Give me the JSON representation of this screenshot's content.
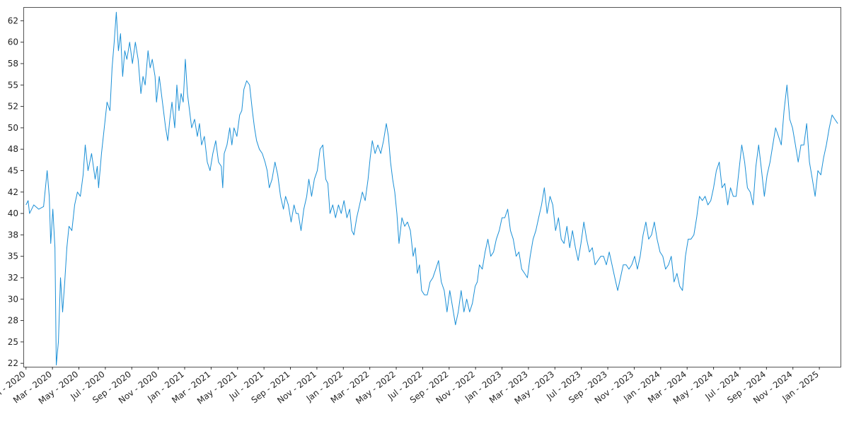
{
  "chart_data": {
    "type": "line",
    "color": "#1a8fd6",
    "xlim": [
      -0.2,
      61.6
    ],
    "ylim": [
      22.1,
      64.1
    ],
    "xticks": [
      {
        "value": 0,
        "label": "Jan - 2020"
      },
      {
        "value": 2,
        "label": "Mar - 2020"
      },
      {
        "value": 4,
        "label": "May - 2020"
      },
      {
        "value": 6,
        "label": "Jul - 2020"
      },
      {
        "value": 8,
        "label": "Sep - 2020"
      },
      {
        "value": 10,
        "label": "Nov - 2020"
      },
      {
        "value": 12,
        "label": "Jan - 2021"
      },
      {
        "value": 14,
        "label": "Mar - 2021"
      },
      {
        "value": 16,
        "label": "May - 2021"
      },
      {
        "value": 18,
        "label": "Jul - 2021"
      },
      {
        "value": 20,
        "label": "Sep - 2021"
      },
      {
        "value": 22,
        "label": "Nov - 2021"
      },
      {
        "value": 24,
        "label": "Jan - 2022"
      },
      {
        "value": 26,
        "label": "Mar - 2022"
      },
      {
        "value": 28,
        "label": "May - 2022"
      },
      {
        "value": 30,
        "label": "Jul - 2022"
      },
      {
        "value": 32,
        "label": "Sep - 2022"
      },
      {
        "value": 34,
        "label": "Nov - 2022"
      },
      {
        "value": 36,
        "label": "Jan - 2023"
      },
      {
        "value": 38,
        "label": "Mar - 2023"
      },
      {
        "value": 40,
        "label": "May - 2023"
      },
      {
        "value": 42,
        "label": "Jul - 2023"
      },
      {
        "value": 44,
        "label": "Sep - 2023"
      },
      {
        "value": 46,
        "label": "Nov - 2023"
      },
      {
        "value": 48,
        "label": "Jan - 2024"
      },
      {
        "value": 50,
        "label": "Mar - 2024"
      },
      {
        "value": 52,
        "label": "May - 2024"
      },
      {
        "value": 54,
        "label": "Jul - 2024"
      },
      {
        "value": 56,
        "label": "Sep - 2024"
      },
      {
        "value": 58,
        "label": "Nov - 2024"
      },
      {
        "value": 60,
        "label": "Jan - 2025"
      }
    ],
    "yticks": [
      {
        "value": 22.5,
        "label": "22"
      },
      25,
      {
        "value": 27.5,
        "label": "28"
      },
      30,
      {
        "value": 32.5,
        "label": "32"
      },
      35,
      {
        "value": 37.5,
        "label": "38"
      },
      40,
      {
        "value": 42.5,
        "label": "42"
      },
      45,
      {
        "value": 47.5,
        "label": "48"
      },
      50,
      {
        "value": 52.5,
        "label": "52"
      },
      55,
      {
        "value": 57.5,
        "label": "58"
      },
      60,
      {
        "value": 62.5,
        "label": "62"
      }
    ],
    "x": [
      0,
      0.16,
      0.27,
      0.59,
      0.96,
      1.33,
      1.6,
      1.76,
      1.87,
      2.03,
      2.19,
      2.29,
      2.45,
      2.61,
      2.77,
      2.93,
      3.09,
      3.25,
      3.47,
      3.68,
      3.89,
      4.11,
      4.32,
      4.48,
      4.69,
      4.96,
      5.23,
      5.39,
      5.49,
      5.71,
      5.92,
      6.13,
      6.35,
      6.51,
      6.67,
      6.83,
      6.99,
      7.15,
      7.31,
      7.47,
      7.63,
      7.84,
      8.05,
      8.27,
      8.48,
      8.69,
      8.85,
      9.01,
      9.23,
      9.39,
      9.55,
      9.76,
      9.87,
      10.08,
      10.24,
      10.4,
      10.56,
      10.72,
      10.88,
      11.04,
      11.25,
      11.41,
      11.57,
      11.73,
      11.89,
      12.05,
      12.21,
      12.37,
      12.53,
      12.75,
      12.96,
      13.12,
      13.28,
      13.49,
      13.71,
      13.92,
      14.13,
      14.35,
      14.56,
      14.77,
      14.88,
      14.99,
      15.2,
      15.41,
      15.57,
      15.73,
      15.95,
      16.16,
      16.32,
      16.48,
      16.69,
      16.91,
      17.12,
      17.28,
      17.44,
      17.65,
      17.87,
      18.08,
      18.24,
      18.4,
      18.61,
      18.83,
      19.04,
      19.25,
      19.47,
      19.63,
      19.84,
      20.05,
      20.27,
      20.43,
      20.59,
      20.8,
      21.01,
      21.23,
      21.39,
      21.6,
      21.81,
      22.03,
      22.24,
      22.45,
      22.67,
      22.83,
      22.99,
      23.2,
      23.41,
      23.63,
      23.84,
      24.05,
      24.27,
      24.48,
      24.64,
      24.8,
      25.01,
      25.23,
      25.44,
      25.65,
      25.87,
      26.03,
      26.19,
      26.4,
      26.61,
      26.83,
      27.04,
      27.25,
      27.41,
      27.57,
      27.73,
      27.89,
      28.05,
      28.21,
      28.43,
      28.64,
      28.85,
      29.07,
      29.28,
      29.44,
      29.6,
      29.76,
      29.92,
      30.13,
      30.35,
      30.56,
      30.77,
      30.99,
      31.2,
      31.41,
      31.63,
      31.84,
      32.05,
      32.27,
      32.48,
      32.69,
      32.91,
      33.12,
      33.33,
      33.55,
      33.76,
      33.97,
      34.13,
      34.29,
      34.51,
      34.72,
      34.93,
      35.15,
      35.36,
      35.57,
      35.79,
      36,
      36.21,
      36.43,
      36.64,
      36.85,
      37.07,
      37.28,
      37.49,
      37.71,
      37.92,
      38.13,
      38.35,
      38.56,
      38.77,
      38.99,
      39.2,
      39.41,
      39.63,
      39.84,
      40.05,
      40.27,
      40.48,
      40.69,
      40.91,
      41.12,
      41.33,
      41.55,
      41.76,
      41.97,
      42.19,
      42.4,
      42.61,
      42.83,
      43.04,
      43.25,
      43.47,
      43.68,
      43.89,
      44.11,
      44.32,
      44.53,
      44.75,
      44.96,
      45.17,
      45.39,
      45.6,
      45.81,
      46.03,
      46.24,
      46.45,
      46.67,
      46.88,
      47.09,
      47.31,
      47.52,
      47.73,
      47.95,
      48.16,
      48.37,
      48.59,
      48.8,
      49.01,
      49.23,
      49.44,
      49.65,
      49.87,
      50.08,
      50.29,
      50.51,
      50.72,
      50.93,
      51.15,
      51.36,
      51.57,
      51.79,
      52,
      52.21,
      52.43,
      52.64,
      52.85,
      53.07,
      53.28,
      53.49,
      53.71,
      53.92,
      54.13,
      54.35,
      54.56,
      54.77,
      54.99,
      55.2,
      55.41,
      55.63,
      55.84,
      56.05,
      56.27,
      56.48,
      56.69,
      56.91,
      57.12,
      57.33,
      57.55,
      57.76,
      57.97,
      58.19,
      58.4,
      58.61,
      58.83,
      59.04,
      59.25,
      59.47,
      59.68,
      59.89,
      60.11,
      60.32,
      60.53,
      60.75,
      60.96,
      61.17,
      61.39
    ],
    "values": [
      41,
      41.5,
      40,
      41,
      40.5,
      40.8,
      45,
      42,
      36.5,
      40.5,
      36,
      22.3,
      25,
      32.5,
      28.5,
      32,
      36,
      38.5,
      38,
      41,
      42.5,
      42,
      44.5,
      48,
      45,
      47,
      44,
      45.5,
      43,
      47,
      50,
      53,
      52,
      57,
      60,
      63.5,
      59,
      61,
      56,
      59,
      58,
      60,
      57.5,
      60,
      58,
      54,
      56,
      55,
      59,
      57,
      58,
      56,
      53,
      56,
      54,
      52,
      50,
      48.5,
      51,
      53,
      50,
      55,
      52,
      54,
      53,
      58,
      54,
      52,
      50,
      51,
      49,
      50.5,
      48,
      49,
      46,
      45,
      47,
      48.5,
      46,
      45.5,
      43,
      47,
      48,
      50,
      48,
      50,
      49,
      51.5,
      52,
      54.5,
      55.5,
      55,
      52,
      50,
      48.5,
      47.5,
      47,
      46,
      45,
      43,
      44,
      46,
      44.5,
      42,
      40.5,
      42,
      41,
      39,
      41,
      40,
      40,
      38,
      40.5,
      42,
      44,
      42,
      44,
      45,
      47.5,
      48,
      44,
      43.5,
      40,
      41,
      39.5,
      41,
      40,
      41.5,
      39.5,
      40.5,
      38,
      37.5,
      39.5,
      41,
      42.5,
      41.5,
      44,
      46.5,
      48.5,
      47,
      48,
      47,
      48.5,
      50.5,
      49,
      46,
      44,
      42.5,
      40,
      36.5,
      39.5,
      38.5,
      39,
      38,
      35,
      36,
      33,
      34,
      31,
      30.5,
      30.5,
      32,
      32.5,
      33.5,
      34.5,
      32,
      31,
      28.5,
      31,
      29,
      27,
      28.5,
      31,
      28.5,
      30,
      28.5,
      29.5,
      31.5,
      32,
      34,
      33.5,
      35.5,
      37,
      35,
      35.5,
      37,
      38,
      39.5,
      39.5,
      40.5,
      38,
      37,
      35,
      35.5,
      33.5,
      33,
      32.5,
      35,
      37,
      38,
      39.5,
      41,
      43,
      40,
      42,
      41,
      38,
      39.5,
      37,
      36.5,
      38.5,
      36,
      38,
      36,
      34.5,
      36.5,
      39,
      37,
      35.5,
      36,
      34,
      34.5,
      35,
      35,
      34,
      35.5,
      34,
      32.5,
      31,
      32.5,
      34,
      34,
      33.5,
      34,
      35,
      33.5,
      35,
      37.5,
      39,
      37,
      37.5,
      39,
      37,
      35.5,
      35,
      33.5,
      34,
      35,
      32,
      33,
      31.5,
      31,
      35,
      37,
      37,
      37.5,
      39.5,
      42,
      41.5,
      42,
      41,
      41.5,
      43,
      45,
      46,
      43,
      43.5,
      41,
      43,
      42,
      42,
      45,
      48,
      46,
      43,
      42.5,
      41,
      45.5,
      48,
      45,
      42,
      44.5,
      46,
      48,
      50,
      49,
      48,
      52,
      55,
      51,
      50,
      48,
      46,
      48,
      48,
      50.5,
      46,
      44,
      42,
      45,
      44.5,
      46.5,
      48,
      50,
      51.5,
      51,
      50.5
    ]
  }
}
